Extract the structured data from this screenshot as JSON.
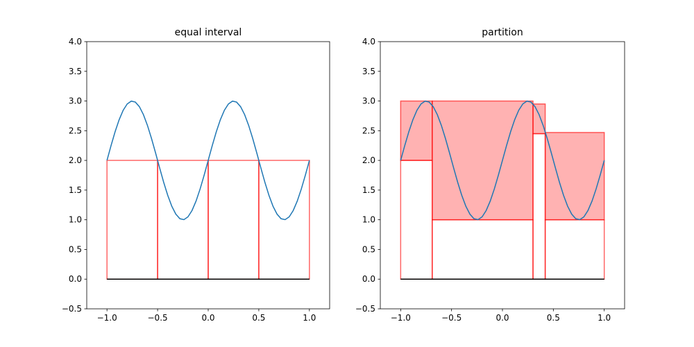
{
  "chart_data": [
    {
      "type": "line",
      "title": "equal interval",
      "xlim": [
        -1.2,
        1.2
      ],
      "ylim": [
        -0.5,
        4.0
      ],
      "xticks": [
        -1.0,
        -0.5,
        0.0,
        0.5,
        1.0
      ],
      "xtick_labels": [
        "−1.0",
        "−0.5",
        "0.0",
        "0.5",
        "1.0"
      ],
      "yticks": [
        -0.5,
        0.0,
        0.5,
        1.0,
        1.5,
        2.0,
        2.5,
        3.0,
        3.5,
        4.0
      ],
      "ytick_labels": [
        "−0.5",
        "0.0",
        "0.5",
        "1.0",
        "1.5",
        "2.0",
        "2.5",
        "3.0",
        "3.5",
        "4.0"
      ],
      "curve": {
        "formula": "y = 2 + sin(2*pi*x)",
        "x_range": [
          -1,
          1
        ],
        "samples": 51,
        "color": "#1f77b4"
      },
      "baseline": {
        "x_range": [
          -1,
          1
        ],
        "y": 0,
        "color": "#000000"
      },
      "rects": [
        {
          "x0": -1.0,
          "x1": -0.5,
          "y0": 0,
          "y1": 2.0,
          "fill": false
        },
        {
          "x0": -0.5,
          "x1": 0.0,
          "y0": 0,
          "y1": 2.0,
          "fill": false
        },
        {
          "x0": 0.0,
          "x1": 0.5,
          "y0": 0,
          "y1": 2.0,
          "fill": false
        },
        {
          "x0": 0.5,
          "x1": 1.0,
          "y0": 0,
          "y1": 2.0,
          "fill": false
        }
      ],
      "rect_edge_color": "#ff0000",
      "rect_fill_color": "#ff0000"
    },
    {
      "type": "line",
      "title": "partition",
      "xlim": [
        -1.2,
        1.2
      ],
      "ylim": [
        -0.5,
        4.0
      ],
      "xticks": [
        -1.0,
        -0.5,
        0.0,
        0.5,
        1.0
      ],
      "xtick_labels": [
        "−1.0",
        "−0.5",
        "0.0",
        "0.5",
        "1.0"
      ],
      "yticks": [
        -0.5,
        0.0,
        0.5,
        1.0,
        1.5,
        2.0,
        2.5,
        3.0,
        3.5,
        4.0
      ],
      "ytick_labels": [
        "−0.5",
        "0.0",
        "0.5",
        "1.0",
        "1.5",
        "2.0",
        "2.5",
        "3.0",
        "3.5",
        "4.0"
      ],
      "curve": {
        "formula": "y = 2 + sin(2*pi*x)",
        "x_range": [
          -1,
          1
        ],
        "samples": 51,
        "color": "#1f77b4"
      },
      "baseline": {
        "x_range": [
          -1,
          1
        ],
        "y": 0,
        "color": "#000000"
      },
      "rects": [
        {
          "x0": -1.0,
          "x1": -0.69,
          "y0": 0,
          "y1": 2.0,
          "fill": false
        },
        {
          "x0": -1.0,
          "x1": -0.69,
          "y0": 2.0,
          "y1": 3.0,
          "fill": true
        },
        {
          "x0": -0.69,
          "x1": 0.3,
          "y0": 0,
          "y1": 1.0,
          "fill": false
        },
        {
          "x0": -0.69,
          "x1": 0.3,
          "y0": 1.0,
          "y1": 3.0,
          "fill": true
        },
        {
          "x0": 0.3,
          "x1": 0.42,
          "y0": 0,
          "y1": 2.45,
          "fill": false
        },
        {
          "x0": 0.3,
          "x1": 0.42,
          "y0": 2.45,
          "y1": 2.95,
          "fill": true
        },
        {
          "x0": 0.42,
          "x1": 1.0,
          "y0": 0,
          "y1": 1.0,
          "fill": false
        },
        {
          "x0": 0.42,
          "x1": 1.0,
          "y0": 1.0,
          "y1": 2.47,
          "fill": true
        }
      ],
      "rect_edge_color": "#ff0000",
      "rect_fill_color": "#ff0000"
    }
  ]
}
